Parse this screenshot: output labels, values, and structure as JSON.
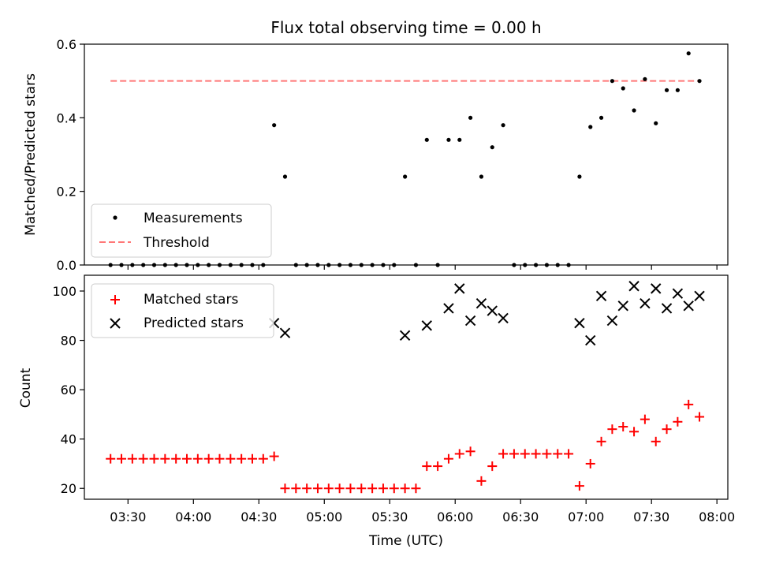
{
  "chart_data": {
    "title": "Flux total observing time = 0.00 h",
    "xlabel": "Time (UTC)",
    "x_tick_labels": [
      "03:30",
      "04:00",
      "04:30",
      "05:00",
      "05:30",
      "06:00",
      "06:30",
      "07:00",
      "07:30",
      "08:00"
    ],
    "x_ticks": [
      "03:30",
      "04:00",
      "04:30",
      "05:00",
      "05:30",
      "06:00",
      "06:30",
      "07:00",
      "07:30",
      "08:00"
    ],
    "xlim": [
      "03:10",
      "08:05"
    ],
    "times": [
      "03:22",
      "03:27",
      "03:32",
      "03:37",
      "03:42",
      "03:47",
      "03:52",
      "03:57",
      "04:02",
      "04:07",
      "04:12",
      "04:17",
      "04:22",
      "04:27",
      "04:32",
      "04:37",
      "04:42",
      "04:47",
      "04:52",
      "04:57",
      "05:02",
      "05:07",
      "05:12",
      "05:17",
      "05:22",
      "05:27",
      "05:32",
      "05:37",
      "05:42",
      "05:47",
      "05:52",
      "05:57",
      "06:02",
      "06:07",
      "06:12",
      "06:17",
      "06:22",
      "06:27",
      "06:32",
      "06:37",
      "06:42",
      "06:47",
      "06:52",
      "06:57",
      "07:02",
      "07:07",
      "07:12",
      "07:17",
      "07:22",
      "07:27",
      "07:32",
      "07:37",
      "07:42",
      "07:47",
      "07:52"
    ],
    "charts": [
      {
        "type": "scatter",
        "ylabel": "Matched/Predicted stars",
        "ylim": [
          0,
          0.6
        ],
        "y_ticks": [
          0,
          0.2,
          0.4,
          0.6
        ],
        "y_tick_labels": [
          "0.0",
          "0.2",
          "0.4",
          "0.6"
        ],
        "legend": "lower-left",
        "series": [
          {
            "name": "Measurements",
            "color": "#000000",
            "marker": "dot",
            "values": [
              0,
              0,
              0,
              0,
              0,
              0,
              0,
              0,
              0,
              0,
              0,
              0,
              0,
              0,
              0,
              0.38,
              0.24,
              0,
              0,
              0,
              0,
              0,
              0,
              0,
              0,
              0,
              0,
              0.24,
              0,
              0.34,
              0,
              0.34,
              0.34,
              0.4,
              0.24,
              0.32,
              0.38,
              0,
              0,
              0,
              0,
              0,
              0,
              0.24,
              0.375,
              0.4,
              0.5,
              0.48,
              0.42,
              0.505,
              0.385,
              0.475,
              0.475,
              0.575,
              0.5
            ]
          },
          {
            "name": "Threshold",
            "color": "#ff7777",
            "style": "dashed",
            "value": 0.5
          }
        ]
      },
      {
        "type": "scatter",
        "ylabel": "Count",
        "ylim": [
          15.6,
          106.4
        ],
        "y_ticks": [
          20,
          40,
          60,
          80,
          100
        ],
        "y_tick_labels": [
          "20",
          "40",
          "60",
          "80",
          "100"
        ],
        "legend": "top-left",
        "series": [
          {
            "name": "Matched stars",
            "color": "#ff0000",
            "marker": "plus",
            "values": [
              32,
              32,
              32,
              32,
              32,
              32,
              32,
              32,
              32,
              32,
              32,
              32,
              32,
              32,
              32,
              33,
              20,
              20,
              20,
              20,
              20,
              20,
              20,
              20,
              20,
              20,
              20,
              20,
              20,
              29,
              29,
              32,
              34,
              35,
              23,
              29,
              34,
              34,
              34,
              34,
              34,
              34,
              34,
              21,
              30,
              39,
              44,
              45,
              43,
              48,
              39,
              44,
              47,
              54,
              49
            ]
          },
          {
            "name": "Predicted stars",
            "color": "#000000",
            "marker": "x",
            "values": [
              null,
              null,
              null,
              null,
              null,
              null,
              null,
              null,
              null,
              null,
              null,
              null,
              null,
              null,
              null,
              87,
              83,
              null,
              null,
              null,
              null,
              null,
              null,
              null,
              null,
              null,
              null,
              82,
              null,
              86,
              null,
              93,
              101,
              88,
              95,
              92,
              89,
              null,
              null,
              null,
              null,
              null,
              null,
              87,
              80,
              98,
              88,
              94,
              102,
              95,
              101,
              93,
              99,
              94,
              98
            ]
          }
        ]
      }
    ]
  }
}
